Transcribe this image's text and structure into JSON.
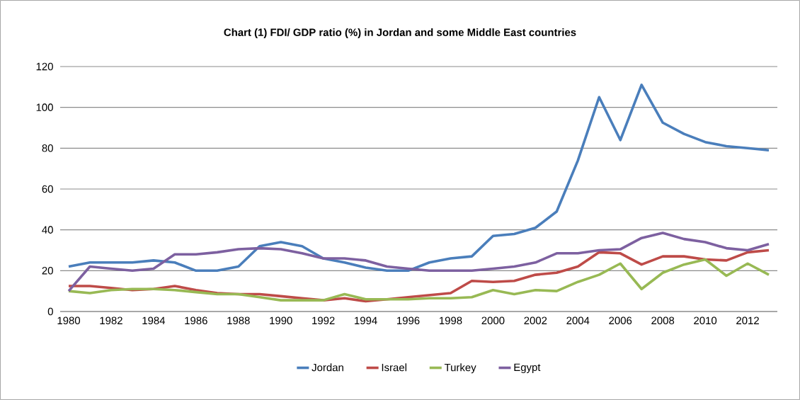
{
  "chart_data": {
    "type": "line",
    "title": "Chart (1) FDI/ GDP ratio (%) in Jordan and some Middle East countries",
    "x": [
      1980,
      1981,
      1982,
      1983,
      1984,
      1985,
      1986,
      1987,
      1988,
      1989,
      1990,
      1991,
      1992,
      1993,
      1994,
      1995,
      1996,
      1997,
      1998,
      1999,
      2000,
      2001,
      2002,
      2003,
      2004,
      2005,
      2006,
      2007,
      2008,
      2009,
      2010,
      2011,
      2012,
      2013
    ],
    "series": [
      {
        "name": "Jordan",
        "color": "#4a7ebb",
        "values": [
          22,
          24,
          24,
          24,
          25,
          24,
          20,
          20,
          22,
          32,
          34,
          32,
          26,
          24,
          21.5,
          20,
          20,
          24,
          26,
          27,
          37,
          38,
          41,
          49,
          74,
          105,
          84,
          111,
          92.5,
          87,
          83,
          81,
          80,
          79
        ]
      },
      {
        "name": "Israel",
        "color": "#be4b48",
        "values": [
          12.5,
          12.5,
          11.5,
          10.5,
          11,
          12.5,
          10.5,
          9,
          8.5,
          8.5,
          7.5,
          6.5,
          5.5,
          6.5,
          5,
          6,
          7,
          8,
          9,
          15,
          14.5,
          15,
          18,
          19,
          22,
          29,
          28.5,
          23,
          27,
          27,
          25.5,
          25,
          29,
          30
        ]
      },
      {
        "name": "Turkey",
        "color": "#98b954",
        "values": [
          10,
          9,
          10.5,
          11,
          11,
          10.5,
          9.5,
          8.5,
          8.5,
          7,
          5.5,
          5.5,
          5.5,
          8.5,
          6,
          6,
          6,
          6.5,
          6.5,
          7,
          10.5,
          8.5,
          10.5,
          10,
          14.5,
          18,
          23.5,
          11,
          19,
          23,
          25.5,
          17.5,
          23.5,
          18
        ]
      },
      {
        "name": "Egypt",
        "color": "#7d60a0",
        "values": [
          10,
          22,
          21,
          20,
          21,
          28,
          28,
          29,
          30.5,
          31,
          30.5,
          28.5,
          26,
          26,
          25,
          22,
          21,
          20,
          20,
          20,
          21,
          22,
          24,
          28.5,
          28.5,
          30,
          30.5,
          36,
          38.5,
          35.5,
          34,
          31,
          30,
          33
        ]
      }
    ],
    "xlim": [
      1979.6,
      2013.4
    ],
    "xticks": [
      1980,
      1982,
      1984,
      1986,
      1988,
      1990,
      1992,
      1994,
      1996,
      1998,
      2000,
      2002,
      2004,
      2006,
      2008,
      2010,
      2012
    ],
    "ylim": [
      0,
      120
    ],
    "yticks": [
      0,
      20,
      40,
      60,
      80,
      100,
      120
    ],
    "grid": "y",
    "legend": "bottom",
    "marker": "none",
    "line_style": "solid"
  }
}
